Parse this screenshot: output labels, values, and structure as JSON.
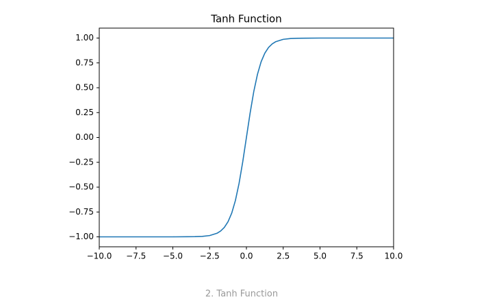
{
  "chart_data": {
    "type": "line",
    "title": "Tanh Function",
    "caption": "2. Tanh Function",
    "color": "#1f77b4",
    "x": [
      -10,
      -8,
      -6,
      -5,
      -4,
      -3.5,
      -3,
      -2.5,
      -2,
      -1.75,
      -1.5,
      -1.25,
      -1,
      -0.75,
      -0.5,
      -0.25,
      0,
      0.25,
      0.5,
      0.75,
      1,
      1.25,
      1.5,
      1.75,
      2,
      2.5,
      3,
      3.5,
      4,
      5,
      6,
      8,
      10
    ],
    "values": [
      -1,
      -1,
      -1,
      -1,
      -0.999,
      -0.998,
      -0.995,
      -0.987,
      -0.964,
      -0.941,
      -0.905,
      -0.848,
      -0.762,
      -0.635,
      -0.462,
      -0.245,
      0,
      0.245,
      0.462,
      0.635,
      0.762,
      0.848,
      0.905,
      0.941,
      0.964,
      0.987,
      0.995,
      0.998,
      0.999,
      1,
      1,
      1,
      1
    ],
    "xlim": [
      -10,
      10
    ],
    "ylim": [
      -1.1,
      1.1
    ],
    "xticks": [
      {
        "value": -10,
        "label": "−10.0"
      },
      {
        "value": -7.5,
        "label": "−7.5"
      },
      {
        "value": -5,
        "label": "−5.0"
      },
      {
        "value": -2.5,
        "label": "−2.5"
      },
      {
        "value": 0,
        "label": "0.0"
      },
      2.5,
      {
        "value": 5,
        "label": "5.0"
      },
      7.5,
      {
        "value": 10,
        "label": "10.0"
      }
    ],
    "yticks": [
      {
        "value": -1,
        "label": "−1.00"
      },
      {
        "value": -0.75,
        "label": "−0.75"
      },
      {
        "value": -0.5,
        "label": "−0.50"
      },
      {
        "value": -0.25,
        "label": "−0.25"
      },
      {
        "value": 0,
        "label": "0.00"
      },
      0.25,
      {
        "value": 0.5,
        "label": "0.50"
      },
      0.75,
      {
        "value": 1,
        "label": "1.00"
      }
    ]
  }
}
